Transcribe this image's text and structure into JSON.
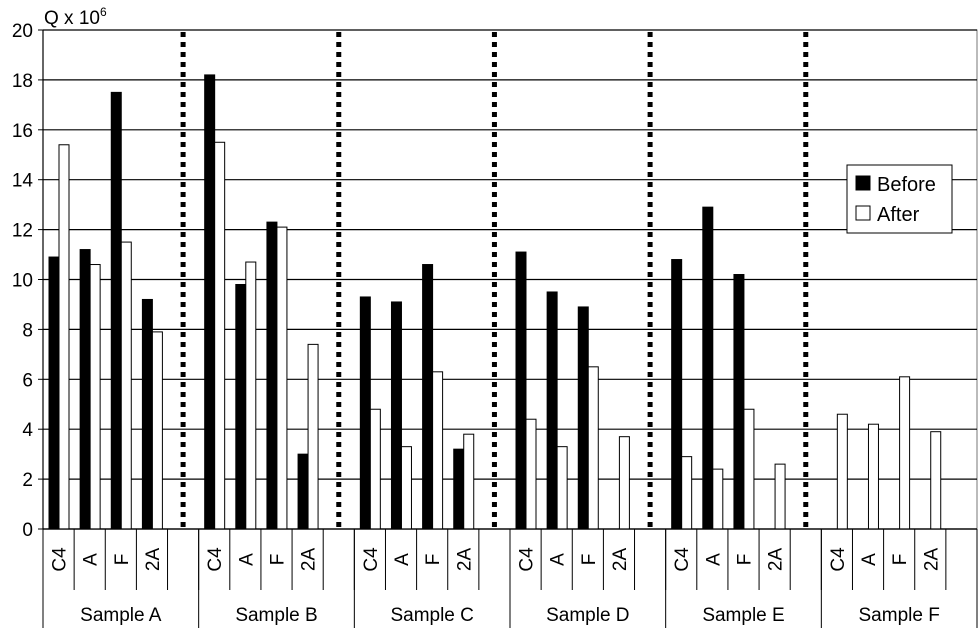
{
  "chart_data": {
    "type": "bar",
    "y_unit": "Q x 10",
    "y_unit_exp": "6",
    "ylim": [
      0,
      20
    ],
    "yticks": [
      0,
      2,
      4,
      6,
      8,
      10,
      12,
      14,
      16,
      18,
      20
    ],
    "grid": true,
    "legend_position": "right",
    "groups": [
      "Sample A",
      "Sample B",
      "Sample C",
      "Sample D",
      "Sample E",
      "Sample F"
    ],
    "categories": [
      "C4",
      "A",
      "F",
      "2A"
    ],
    "series": [
      {
        "name": "Before",
        "color": "#000000",
        "values": [
          [
            10.9,
            11.2,
            17.5,
            9.2
          ],
          [
            18.2,
            9.8,
            12.3,
            3.0
          ],
          [
            9.3,
            9.1,
            10.6,
            3.2
          ],
          [
            11.1,
            9.5,
            8.9,
            0
          ],
          [
            10.8,
            12.9,
            10.2,
            0
          ],
          [
            0,
            0,
            0,
            0
          ]
        ]
      },
      {
        "name": "After",
        "color": "#ffffff",
        "values": [
          [
            15.4,
            10.6,
            11.5,
            7.9
          ],
          [
            15.5,
            10.7,
            12.1,
            7.4
          ],
          [
            4.8,
            3.3,
            6.3,
            3.8
          ],
          [
            4.4,
            3.3,
            6.5,
            3.7
          ],
          [
            2.9,
            2.4,
            4.8,
            2.6
          ],
          [
            4.6,
            4.2,
            6.1,
            3.9
          ]
        ]
      }
    ]
  }
}
